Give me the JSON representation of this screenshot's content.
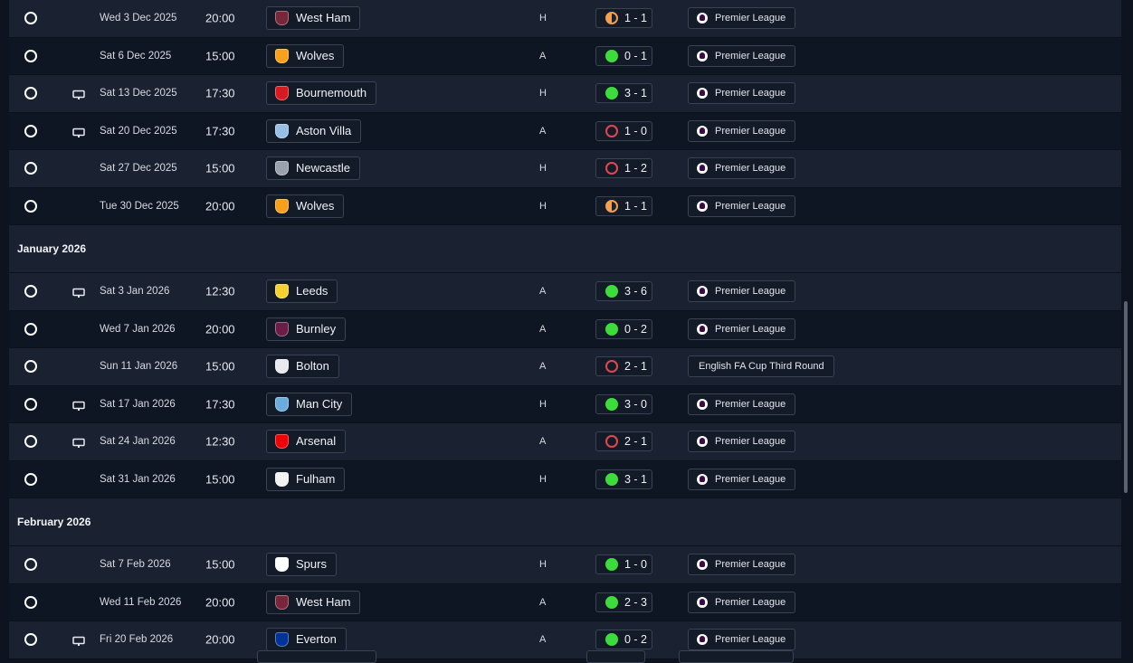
{
  "months": [
    "January 2026",
    "February 2026"
  ],
  "rows_block1": [
    {
      "date": "Wed 3 Dec 2025",
      "time": "20:00",
      "team": "West Ham",
      "venue": "H",
      "result": "1 - 1",
      "outcome": "draw",
      "tv": false,
      "competition": "Premier League",
      "badge": "#7a263a"
    },
    {
      "date": "Sat 6 Dec 2025",
      "time": "15:00",
      "team": "Wolves",
      "venue": "A",
      "result": "0 - 1",
      "outcome": "win",
      "tv": false,
      "competition": "Premier League",
      "badge": "#f9a01b"
    },
    {
      "date": "Sat 13 Dec 2025",
      "time": "17:30",
      "team": "Bournemouth",
      "venue": "H",
      "result": "3 - 1",
      "outcome": "win",
      "tv": true,
      "competition": "Premier League",
      "badge": "#d71920"
    },
    {
      "date": "Sat 20 Dec 2025",
      "time": "17:30",
      "team": "Aston Villa",
      "venue": "A",
      "result": "1 - 0",
      "outcome": "loss",
      "tv": true,
      "competition": "Premier League",
      "badge": "#95bfe5"
    },
    {
      "date": "Sat 27 Dec 2025",
      "time": "15:00",
      "team": "Newcastle",
      "venue": "H",
      "result": "1 - 2",
      "outcome": "loss",
      "tv": false,
      "competition": "Premier League",
      "badge": "#9aa3ad"
    },
    {
      "date": "Tue 30 Dec 2025",
      "time": "20:00",
      "team": "Wolves",
      "venue": "H",
      "result": "1 - 1",
      "outcome": "draw",
      "tv": false,
      "competition": "Premier League",
      "badge": "#f9a01b"
    }
  ],
  "rows_block2": [
    {
      "date": "Sat 3 Jan 2026",
      "time": "12:30",
      "team": "Leeds",
      "venue": "A",
      "result": "3 - 6",
      "outcome": "win",
      "tv": true,
      "competition": "Premier League",
      "badge": "#f5d130"
    },
    {
      "date": "Wed 7 Jan 2026",
      "time": "20:00",
      "team": "Burnley",
      "venue": "A",
      "result": "0 - 2",
      "outcome": "win",
      "tv": false,
      "competition": "Premier League",
      "badge": "#6c1d45"
    },
    {
      "date": "Sun 11 Jan 2026",
      "time": "15:00",
      "team": "Bolton",
      "venue": "A",
      "result": "2 - 1",
      "outcome": "loss",
      "tv": false,
      "competition": "English FA Cup Third Round",
      "badge": "#e8eaf0"
    },
    {
      "date": "Sat 17 Jan 2026",
      "time": "17:30",
      "team": "Man City",
      "venue": "H",
      "result": "3 - 0",
      "outcome": "win",
      "tv": true,
      "competition": "Premier League",
      "badge": "#6cabdd"
    },
    {
      "date": "Sat 24 Jan 2026",
      "time": "12:30",
      "team": "Arsenal",
      "venue": "A",
      "result": "2 - 1",
      "outcome": "loss",
      "tv": true,
      "competition": "Premier League",
      "badge": "#ef0107"
    },
    {
      "date": "Sat 31 Jan 2026",
      "time": "15:00",
      "team": "Fulham",
      "venue": "H",
      "result": "3 - 1",
      "outcome": "win",
      "tv": false,
      "competition": "Premier League",
      "badge": "#f2f2f2"
    }
  ],
  "rows_block3": [
    {
      "date": "Sat 7 Feb 2026",
      "time": "15:00",
      "team": "Spurs",
      "venue": "H",
      "result": "1 - 0",
      "outcome": "win",
      "tv": false,
      "competition": "Premier League",
      "badge": "#ffffff"
    },
    {
      "date": "Wed 11 Feb 2026",
      "time": "20:00",
      "team": "West Ham",
      "venue": "A",
      "result": "2 - 3",
      "outcome": "win",
      "tv": false,
      "competition": "Premier League",
      "badge": "#7a263a"
    },
    {
      "date": "Fri 20 Feb 2026",
      "time": "20:00",
      "team": "Everton",
      "venue": "A",
      "result": "0 - 2",
      "outcome": "win",
      "tv": true,
      "competition": "Premier League",
      "badge": "#003399"
    }
  ]
}
